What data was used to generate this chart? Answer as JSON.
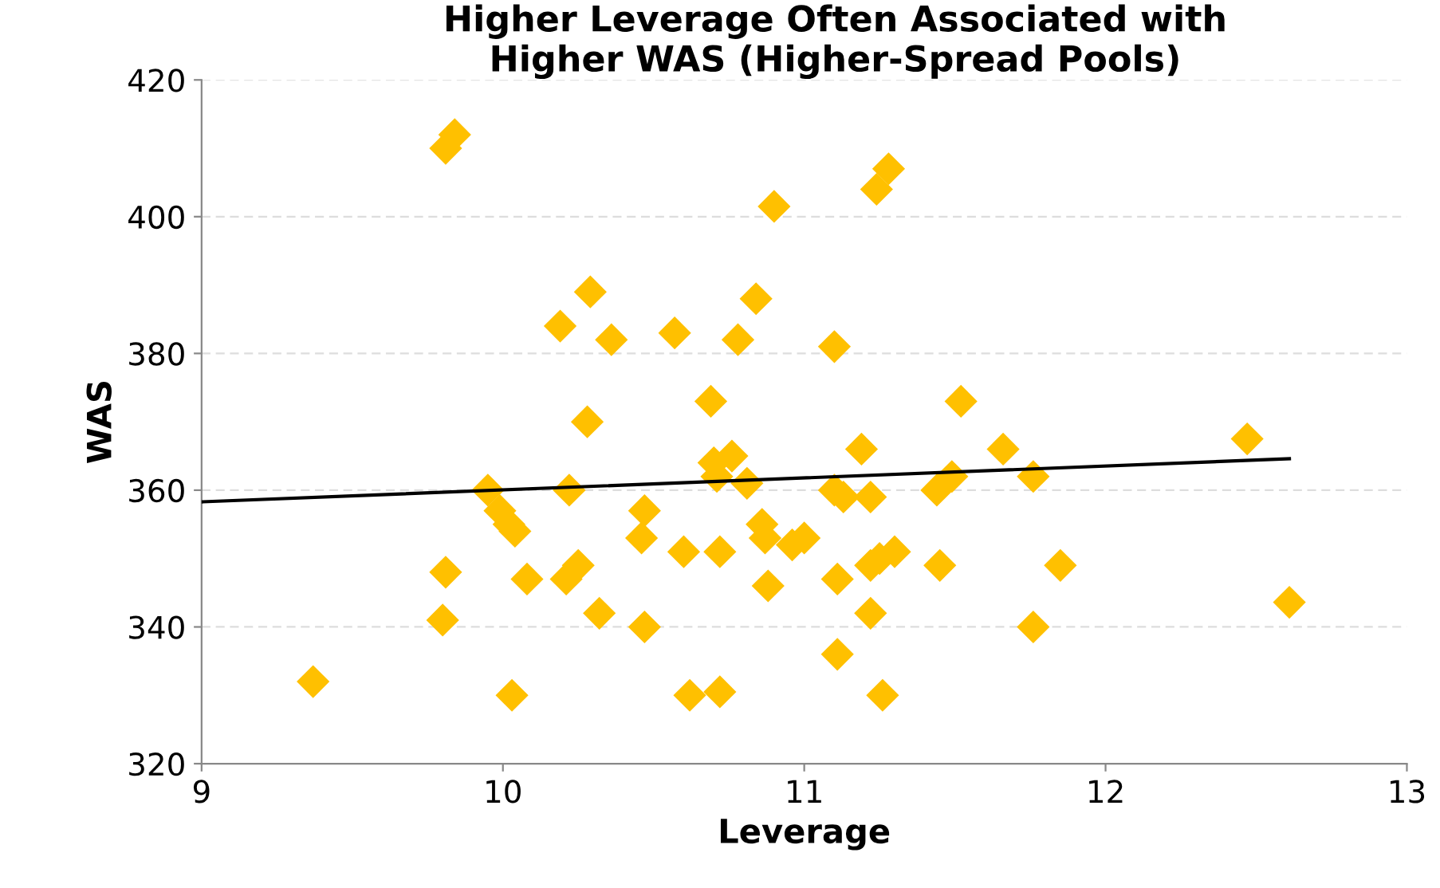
{
  "chart_data": {
    "type": "scatter",
    "title": "Higher Leverage Often Associated with\nHigher WAS (Higher-Spread Pools)",
    "xlabel": "Leverage",
    "ylabel": "WAS",
    "xlim": [
      9,
      13
    ],
    "ylim": [
      320,
      420
    ],
    "xticks": [
      9,
      10,
      11,
      12,
      13
    ],
    "yticks": [
      320,
      340,
      360,
      380,
      400,
      420
    ],
    "grid": "y",
    "marker": "diamond",
    "series": [
      {
        "color": "#ffc000",
        "x": [
          9.37,
          9.81,
          9.84,
          9.81,
          9.8,
          9.95,
          9.99,
          10.02,
          10.04,
          10.03,
          10.08,
          10.19,
          10.22,
          10.21,
          10.25,
          10.28,
          10.29,
          10.32,
          10.36,
          10.46,
          10.47,
          10.47,
          10.57,
          10.6,
          10.62,
          10.69,
          10.7,
          10.71,
          10.76,
          10.81,
          10.72,
          10.72,
          10.78,
          10.84,
          10.86,
          10.87,
          10.88,
          10.9,
          10.96,
          11.0,
          11.1,
          11.1,
          11.13,
          11.11,
          11.11,
          11.19,
          11.22,
          11.22,
          11.25,
          11.22,
          11.24,
          11.28,
          11.3,
          11.26,
          11.44,
          11.49,
          11.45,
          11.52,
          11.66,
          11.76,
          11.76,
          11.85,
          12.47,
          12.61
        ],
        "values": [
          332,
          410,
          412,
          348,
          341,
          360,
          357,
          355,
          354,
          330,
          347,
          384,
          360,
          347,
          349,
          370,
          389,
          342,
          382,
          353,
          357,
          340,
          383,
          351,
          330,
          373,
          364,
          362,
          365,
          361,
          330.5,
          351,
          382,
          388,
          355,
          353,
          346,
          401.5,
          352,
          353,
          381,
          360,
          359,
          347,
          336,
          366,
          359,
          349,
          350,
          342,
          404,
          407,
          351,
          330,
          360,
          362,
          349,
          373,
          366,
          362,
          340,
          349,
          367.5,
          343.6
        ]
      },
      {
        "type": "line",
        "color": "#000000",
        "marker": "none",
        "line_style": "solid",
        "x": [
          9,
          12.61
        ],
        "values": [
          358.3,
          364.6
        ]
      }
    ]
  }
}
